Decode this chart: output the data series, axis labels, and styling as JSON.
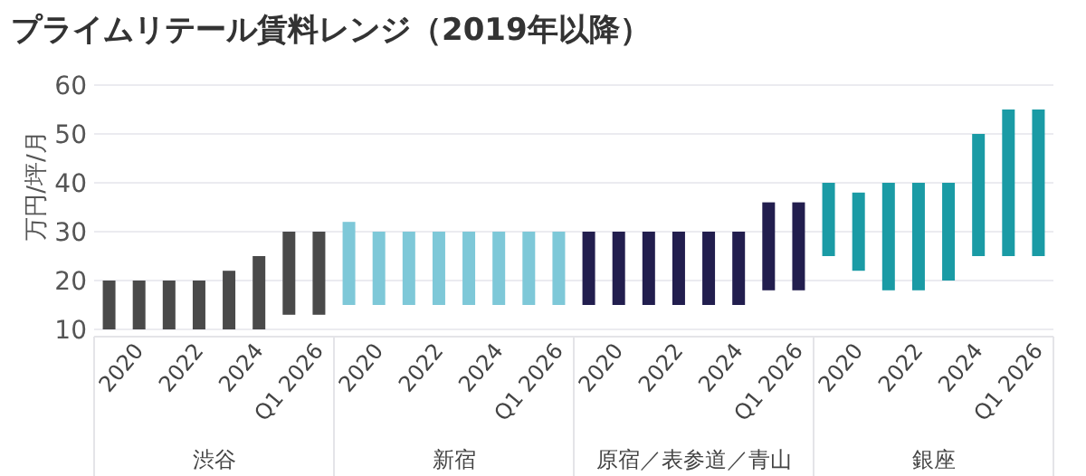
{
  "chart_data": [
    {
      "type": "bar",
      "title": "プライムリテール賃料レンジ（2019年以降）",
      "ylabel": "万円/坪/月",
      "xlabel": "渋谷",
      "categories": [
        null,
        "2020",
        null,
        "2022",
        null,
        "2024",
        null,
        "Q1 2026"
      ],
      "base": [
        10,
        10,
        10,
        10,
        10,
        10,
        13,
        13
      ],
      "values": [
        10,
        10,
        10,
        10,
        12,
        15,
        17,
        17
      ],
      "color": "#4a4a4a",
      "ylim": [
        10,
        60
      ],
      "yticks": [
        10,
        20,
        30,
        40,
        50,
        60
      ],
      "grid": "y"
    },
    {
      "type": "bar",
      "xlabel": "新宿",
      "categories": [
        null,
        "2020",
        null,
        "2022",
        null,
        "2024",
        null,
        "Q1 2026"
      ],
      "base": [
        15,
        15,
        15,
        15,
        15,
        15,
        15,
        15
      ],
      "values": [
        17,
        15,
        15,
        15,
        15,
        15,
        15,
        15
      ],
      "color": "#7ec8d8",
      "ylim": [
        10,
        60
      ],
      "yticks": [
        10,
        20,
        30,
        40,
        50,
        60
      ],
      "grid": "y",
      "tick_labels": "x"
    },
    {
      "type": "bar",
      "xlabel": "原宿／表参道／青山",
      "categories": [
        null,
        "2020",
        null,
        "2022",
        null,
        "2024",
        null,
        "Q1 2026"
      ],
      "base": [
        15,
        15,
        15,
        15,
        15,
        15,
        18,
        18
      ],
      "values": [
        15,
        15,
        15,
        15,
        15,
        15,
        18,
        18
      ],
      "color": "#221e4e",
      "ylim": [
        10,
        60
      ],
      "yticks": [
        10,
        20,
        30,
        40,
        50,
        60
      ],
      "grid": "y",
      "tick_labels": "x"
    },
    {
      "type": "bar",
      "xlabel": "銀座",
      "categories": [
        null,
        "2020",
        null,
        "2022",
        null,
        "2024",
        null,
        "Q1 2026"
      ],
      "base": [
        25,
        22,
        18,
        18,
        20,
        25,
        25,
        25
      ],
      "values": [
        15,
        16,
        22,
        22,
        20,
        25,
        30,
        30
      ],
      "color": "#1a9ba5",
      "ylim": [
        10,
        60
      ],
      "yticks": [
        10,
        20,
        30,
        40,
        50,
        60
      ],
      "grid": "y",
      "tick_labels": "x"
    }
  ]
}
